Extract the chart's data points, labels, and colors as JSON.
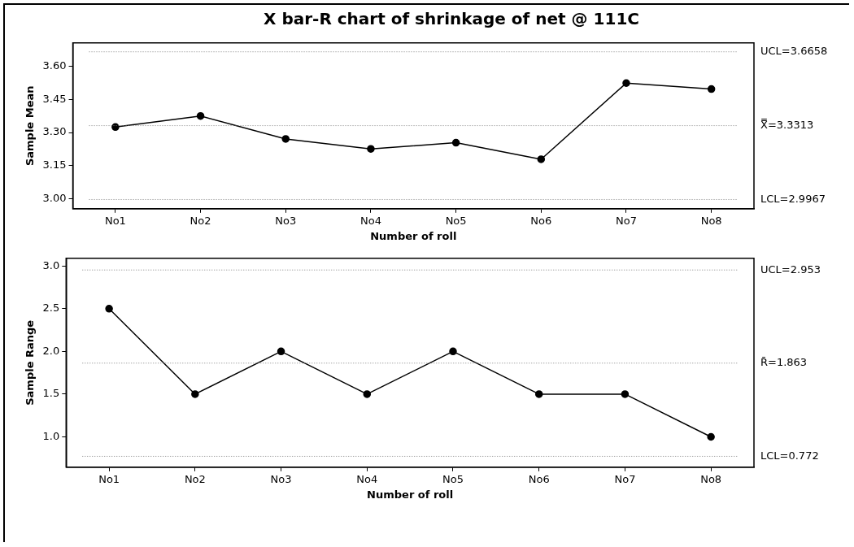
{
  "chart_data": [
    {
      "type": "line",
      "title": "X bar-R chart of shrinkage of net @ 111C",
      "xlabel": "Number of roll",
      "ylabel": "Sample Mean",
      "categories": [
        "No1",
        "No2",
        "No3",
        "No4",
        "No5",
        "No6",
        "No7",
        "No8"
      ],
      "series": [
        {
          "color": "#000000",
          "values": [
            3.325,
            3.375,
            3.271,
            3.226,
            3.254,
            3.179,
            3.524,
            3.497
          ]
        }
      ],
      "ylim": [
        2.955,
        3.706
      ],
      "yticks": [
        {
          "value": 3.0,
          "label": "3.00"
        },
        {
          "value": 3.15,
          "label": "3.15"
        },
        {
          "value": 3.3,
          "label": "3.30"
        },
        {
          "value": 3.45,
          "label": "3.45"
        },
        {
          "value": 3.6,
          "label": "3.60"
        }
      ],
      "ref_lines": [
        {
          "axis": "y",
          "value": 3.6658,
          "label": "UCL=3.6658",
          "color": "#808080",
          "line_style": "dotted"
        },
        {
          "axis": "y",
          "value": 3.3313,
          "label": "X̿=3.3313",
          "color": "#808080",
          "line_style": "dotted"
        },
        {
          "axis": "y",
          "value": 2.9967,
          "label": "LCL=2.9967",
          "color": "#808080",
          "line_style": "dotted"
        }
      ],
      "grid": false,
      "legend": false,
      "marker": "circle",
      "line_style": "solid"
    },
    {
      "type": "line",
      "xlabel": "Number of roll",
      "ylabel": "Sample Range",
      "categories": [
        "No1",
        "No2",
        "No3",
        "No4",
        "No5",
        "No6",
        "No7",
        "No8"
      ],
      "series": [
        {
          "color": "#000000",
          "values": [
            2.5,
            1.5,
            2.0,
            1.5,
            2.0,
            1.5,
            1.5,
            1.0
          ]
        }
      ],
      "ylim": [
        0.645,
        3.09
      ],
      "yticks": [
        {
          "value": 1.0,
          "label": "1.0"
        },
        {
          "value": 1.5,
          "label": "1.5"
        },
        {
          "value": 2.0,
          "label": "2.0"
        },
        {
          "value": 2.5,
          "label": "2.5"
        },
        {
          "value": 3.0,
          "label": "3.0"
        }
      ],
      "ref_lines": [
        {
          "axis": "y",
          "value": 2.953,
          "label": "UCL=2.953",
          "color": "#808080",
          "line_style": "dotted"
        },
        {
          "axis": "y",
          "value": 1.863,
          "label": "R̄=1.863",
          "color": "#808080",
          "line_style": "dotted"
        },
        {
          "axis": "y",
          "value": 0.772,
          "label": "LCL=0.772",
          "color": "#808080",
          "line_style": "dotted"
        }
      ],
      "grid": false,
      "legend": false,
      "marker": "circle",
      "line_style": "solid"
    }
  ]
}
